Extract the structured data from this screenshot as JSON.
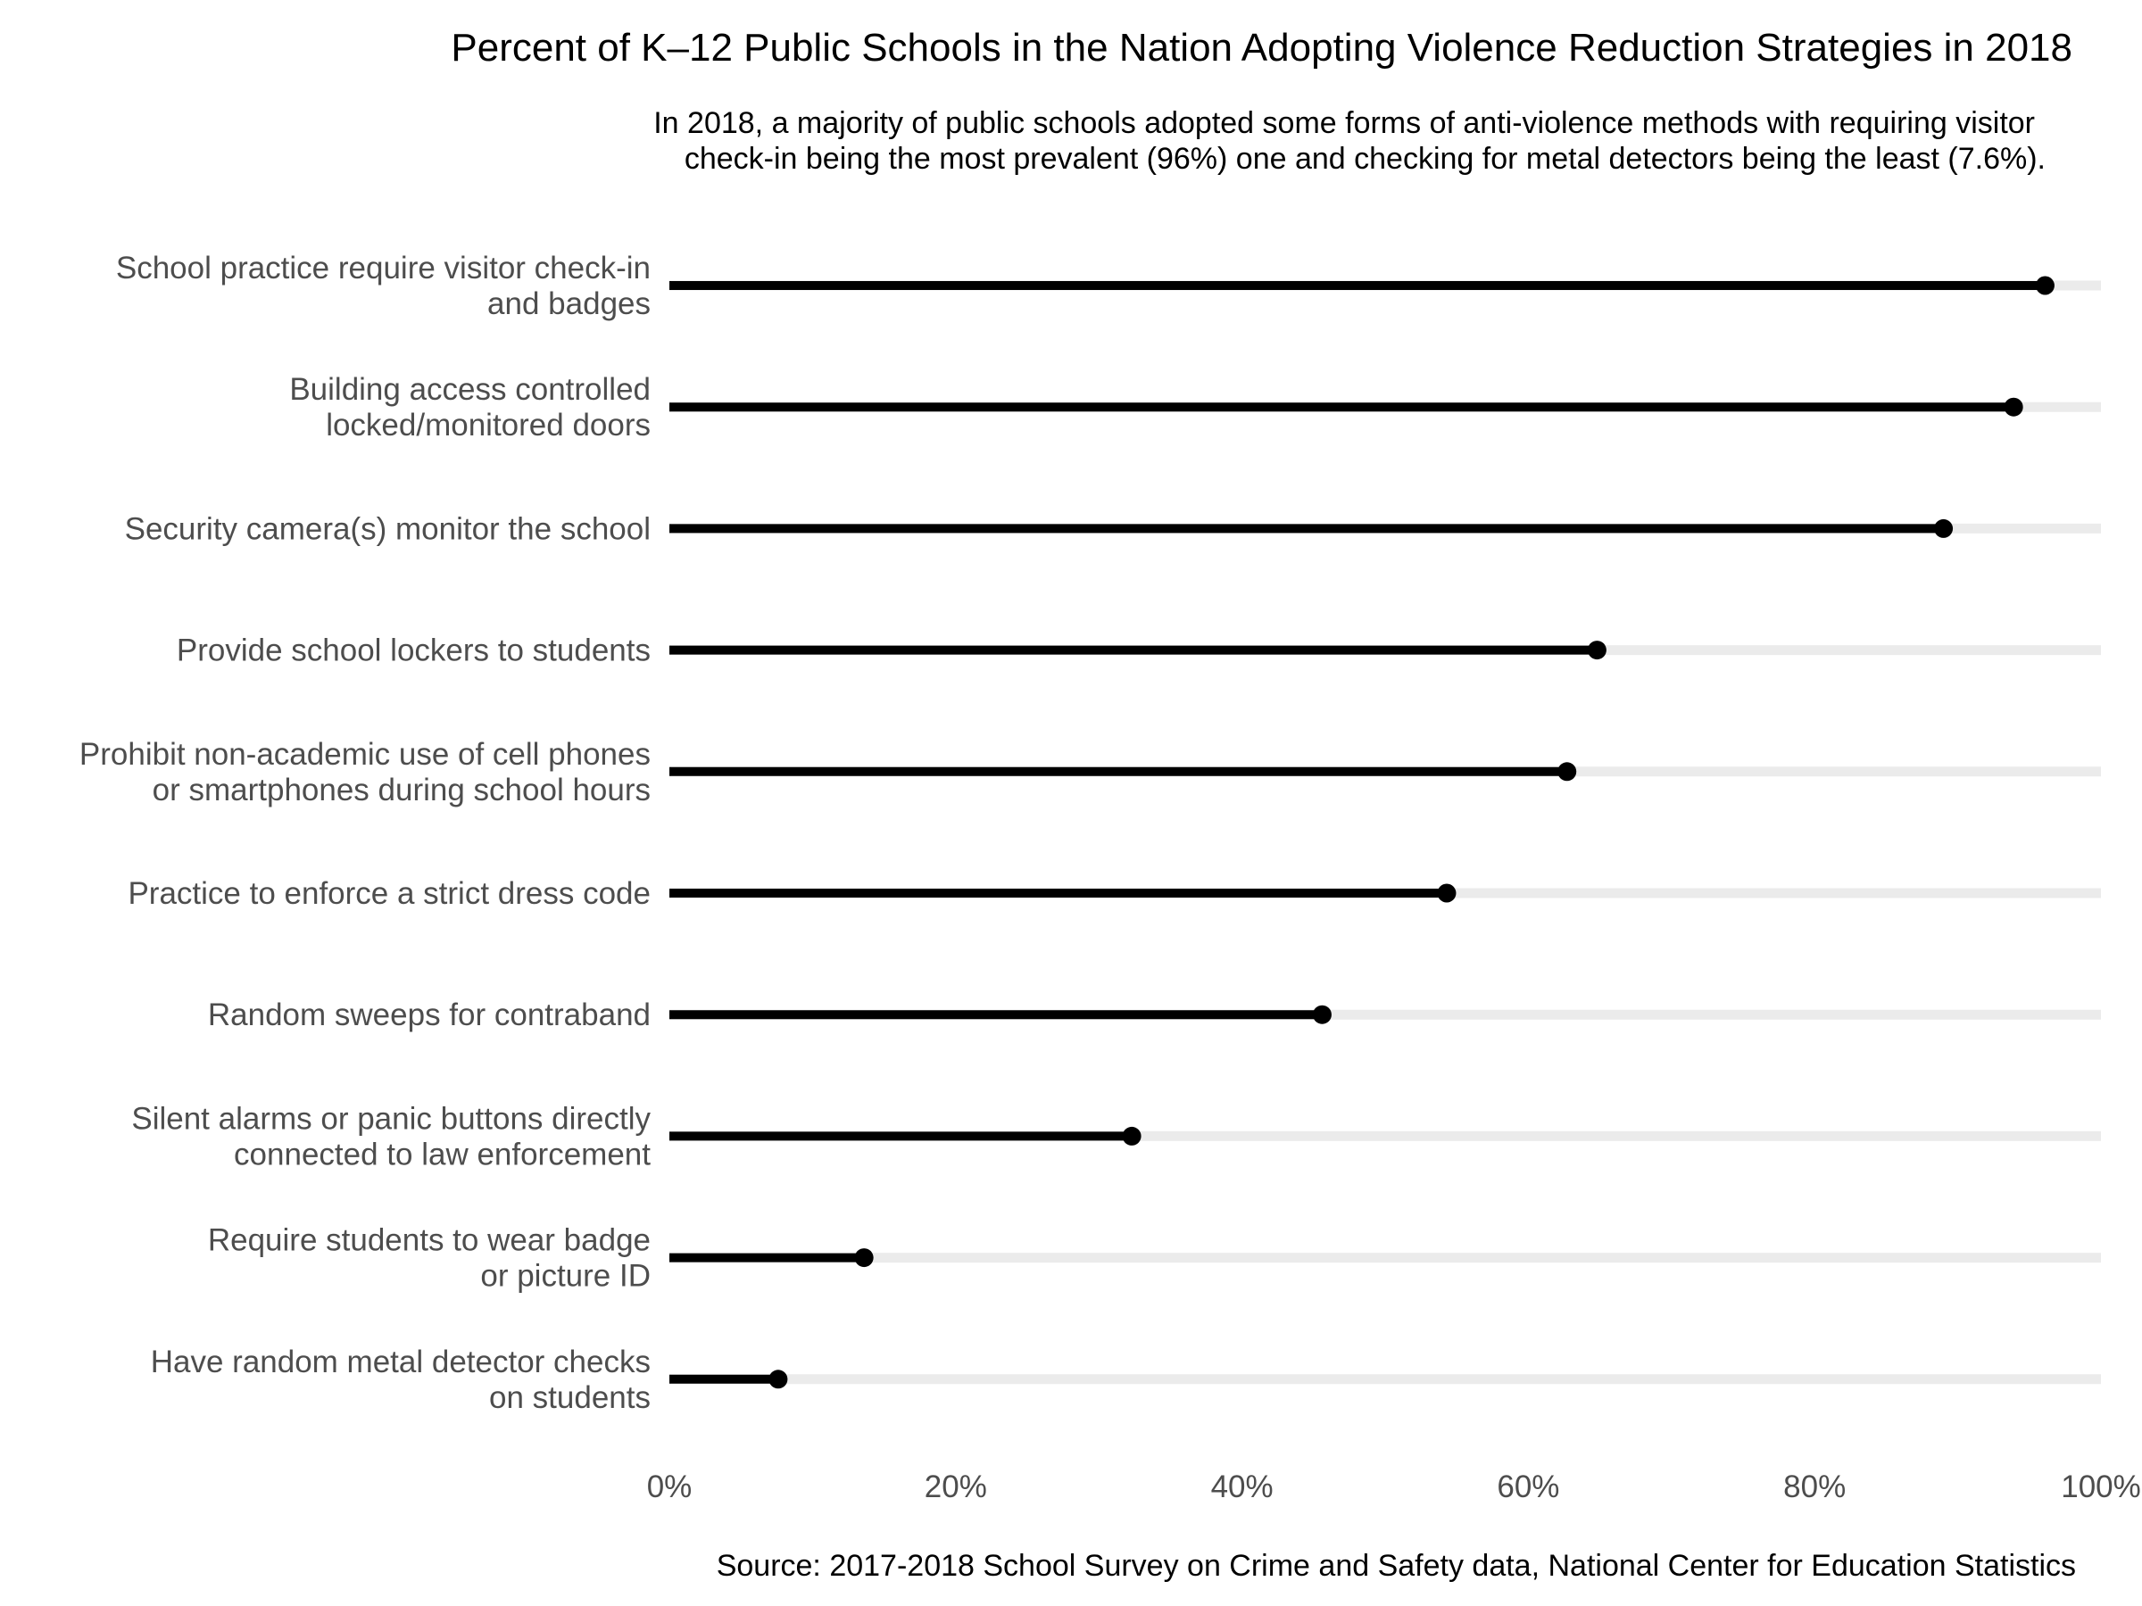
{
  "title": "Percent of K–12 Public Schools in the Nation Adopting Violence Reduction Strategies in 2018",
  "subtitle": [
    "In 2018, a majority of public schools adopted some forms of anti-violence methods with requiring visitor",
    "check-in being the most prevalent (96%) one and checking for metal detectors being the least (7.6%)."
  ],
  "caption": "Source: 2017-2018 School Survey on Crime and Safety data, National Center for Education Statistics",
  "colors": {
    "track": "#ebebeb",
    "bar": "#000000",
    "label": "#4d4d4d"
  },
  "chart_data": {
    "type": "bar",
    "orientation": "horizontal",
    "style": "lollipop",
    "title": "Percent of K–12 Public Schools in the Nation Adopting Violence Reduction Strategies in 2018",
    "subtitle": "In 2018, a majority of public schools adopted some forms of anti-violence methods with requiring visitor check-in being the most prevalent (96%) one and checking for metal detectors being the least (7.6%).",
    "xlabel": "",
    "ylabel": "",
    "xlim": [
      0,
      100
    ],
    "grid": false,
    "legend": "none",
    "x_ticks": [
      "0%",
      "20%",
      "40%",
      "60%",
      "80%",
      "100%"
    ],
    "x_tick_values": [
      0,
      20,
      40,
      60,
      80,
      100
    ],
    "categories": [
      [
        "School practice require visitor check-in",
        "and badges"
      ],
      [
        "Building access controlled",
        "locked/monitored doors"
      ],
      [
        "Security camera(s) monitor the school"
      ],
      [
        "Provide school lockers to students"
      ],
      [
        "Prohibit non-academic use of cell phones",
        "or smartphones during school hours"
      ],
      [
        "Practice to enforce a strict dress code"
      ],
      [
        "Random sweeps for contraband"
      ],
      [
        "Silent alarms or panic buttons directly",
        "connected to law enforcement"
      ],
      [
        "Require students to wear badge",
        "or picture ID"
      ],
      [
        "Have random metal detector checks",
        "on students"
      ]
    ],
    "values": [
      96.1,
      93.9,
      89.0,
      64.8,
      62.7,
      54.3,
      45.6,
      32.3,
      13.6,
      7.6
    ]
  }
}
